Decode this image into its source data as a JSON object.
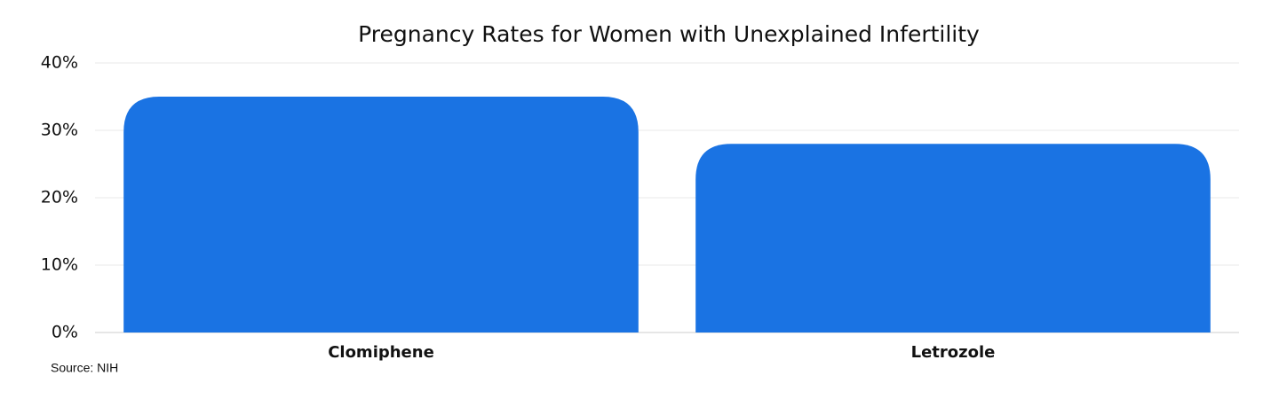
{
  "chart_data": {
    "type": "bar",
    "title": "Pregnancy Rates for Women with Unexplained Infertility",
    "categories": [
      "Clomiphene",
      "Letrozole"
    ],
    "values": [
      35,
      28
    ],
    "color": "#1a73e3",
    "ylim": [
      0,
      40
    ],
    "yticks": [
      {
        "value": 0,
        "label": "0%"
      },
      {
        "value": 10,
        "label": "10%"
      },
      {
        "value": 20,
        "label": "20%"
      },
      {
        "value": 30,
        "label": "30%"
      },
      {
        "value": 40,
        "label": "40%"
      }
    ],
    "grid": true,
    "source": "Source: NIH"
  }
}
